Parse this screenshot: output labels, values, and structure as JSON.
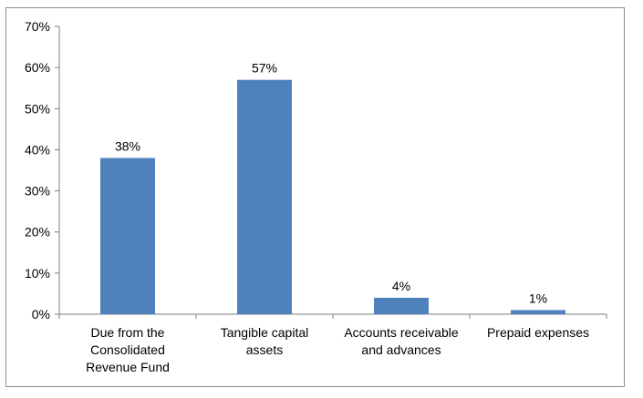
{
  "chart_data": {
    "type": "bar",
    "categories": [
      [
        "Due from the",
        "Consolidated",
        "Revenue Fund"
      ],
      [
        "Tangible capital",
        "assets"
      ],
      [
        "Accounts receivable",
        "and advances"
      ],
      [
        "Prepaid expenses"
      ]
    ],
    "values": [
      38,
      57,
      4,
      1
    ],
    "data_labels": [
      "38%",
      "57%",
      "4%",
      "1%"
    ],
    "ylim": [
      0,
      70
    ],
    "yticks": [
      0,
      10,
      20,
      30,
      40,
      50,
      60,
      70
    ],
    "ytick_labels": [
      "0%",
      "10%",
      "20%",
      "30%",
      "40%",
      "50%",
      "60%",
      "70%"
    ],
    "bar_color": "#4f81bd",
    "grid": false,
    "legend": "none",
    "title": "",
    "xlabel": "",
    "ylabel": ""
  }
}
